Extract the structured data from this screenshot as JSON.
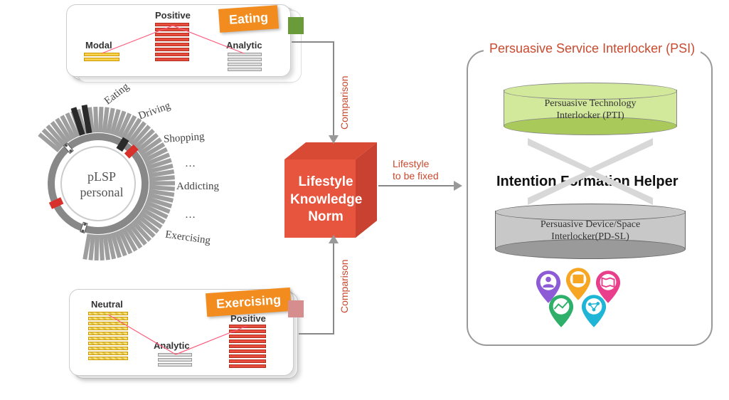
{
  "top_panel": {
    "tag_label": "Eating",
    "tag_bg": "#f28c1f",
    "col1": {
      "label": "Modal",
      "bars": 2,
      "color": "#f7d04a",
      "border": "#cc9900"
    },
    "col2": {
      "label": "Positive",
      "bars": 8,
      "color": "#e74c3c",
      "border": "#b03022"
    },
    "col3": {
      "label": "Analytic",
      "bars": 4,
      "color": "#dcdcdc",
      "border": "#999999"
    }
  },
  "bottom_panel": {
    "tag_label": "Exercising",
    "tag_bg": "#f28c1f",
    "col1": {
      "label": "Neutral",
      "bars": 10,
      "color": "#f7e27a",
      "border": "#cc9900"
    },
    "col2": {
      "label": "Analytic",
      "bars": 3,
      "color": "#dcdcdc",
      "border": "#999999"
    },
    "col3": {
      "label": "Positive",
      "bars": 9,
      "color": "#e74c3c",
      "border": "#b03022"
    }
  },
  "dial": {
    "center_label": "pLSP\npersonal",
    "labels": [
      "Eating",
      "Driving",
      "Shopping",
      "…",
      "Addicting",
      "…",
      "Exercising"
    ],
    "tick_color": "#9e9e9e",
    "highlight1": "#2a2a2a",
    "highlight2": "#d8302a"
  },
  "cube": {
    "text": "Lifestyle\nKnowledge\nNorm",
    "front": "#e8553e",
    "top": "#d84a34",
    "side": "#c94130"
  },
  "arrows": {
    "comparison_label": "Comparison",
    "lifestyle_label": "Lifestyle\nto be fixed",
    "color": "#999999",
    "label_color": "#c94a2f"
  },
  "psi": {
    "title": "Persuasive Service Interlocker (PSI)",
    "cyl_top": {
      "label": "Persuasive Technology\nInterlocker (PTI)",
      "color_light": "#d2e89a",
      "color_dark": "#a9c95a"
    },
    "ifh": "Intention Formation Helper",
    "cyl_bot": {
      "label": "Persuasive Device/Space\nInterlocker(PD-SL)",
      "color_light": "#c8c8c8",
      "color_dark": "#9a9a9a"
    },
    "pins": [
      {
        "color": "#8e5bd6",
        "icon": "person"
      },
      {
        "color": "#f6a623",
        "icon": "box"
      },
      {
        "color": "#e83e8c",
        "icon": "map"
      },
      {
        "color": "#2eaf6a",
        "icon": "chart"
      },
      {
        "color": "#1fb5d6",
        "icon": "graph"
      }
    ],
    "title_color": "#c94a2f"
  },
  "bg": "#ffffff"
}
